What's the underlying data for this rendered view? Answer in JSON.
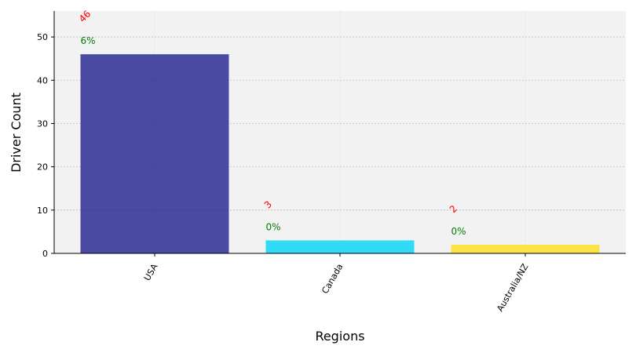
{
  "chart_data": {
    "type": "bar",
    "title": "",
    "xlabel": "Regions",
    "ylabel": "Driver Count",
    "categories": [
      "USA",
      "Canada",
      "Australia/NZ"
    ],
    "values": [
      46,
      3,
      2
    ],
    "percent_labels": [
      "6%",
      "0%",
      "0%"
    ],
    "colors": [
      "#1f1f8f",
      "#00d4f5",
      "#ffe01a"
    ],
    "value_label_color": "#ff0000",
    "percent_label_color": "#008000",
    "plot_background": "#f2f2f2",
    "ylim": [
      0,
      56
    ],
    "yticks": [
      0,
      10,
      20,
      30,
      40,
      50
    ],
    "grid": true
  }
}
